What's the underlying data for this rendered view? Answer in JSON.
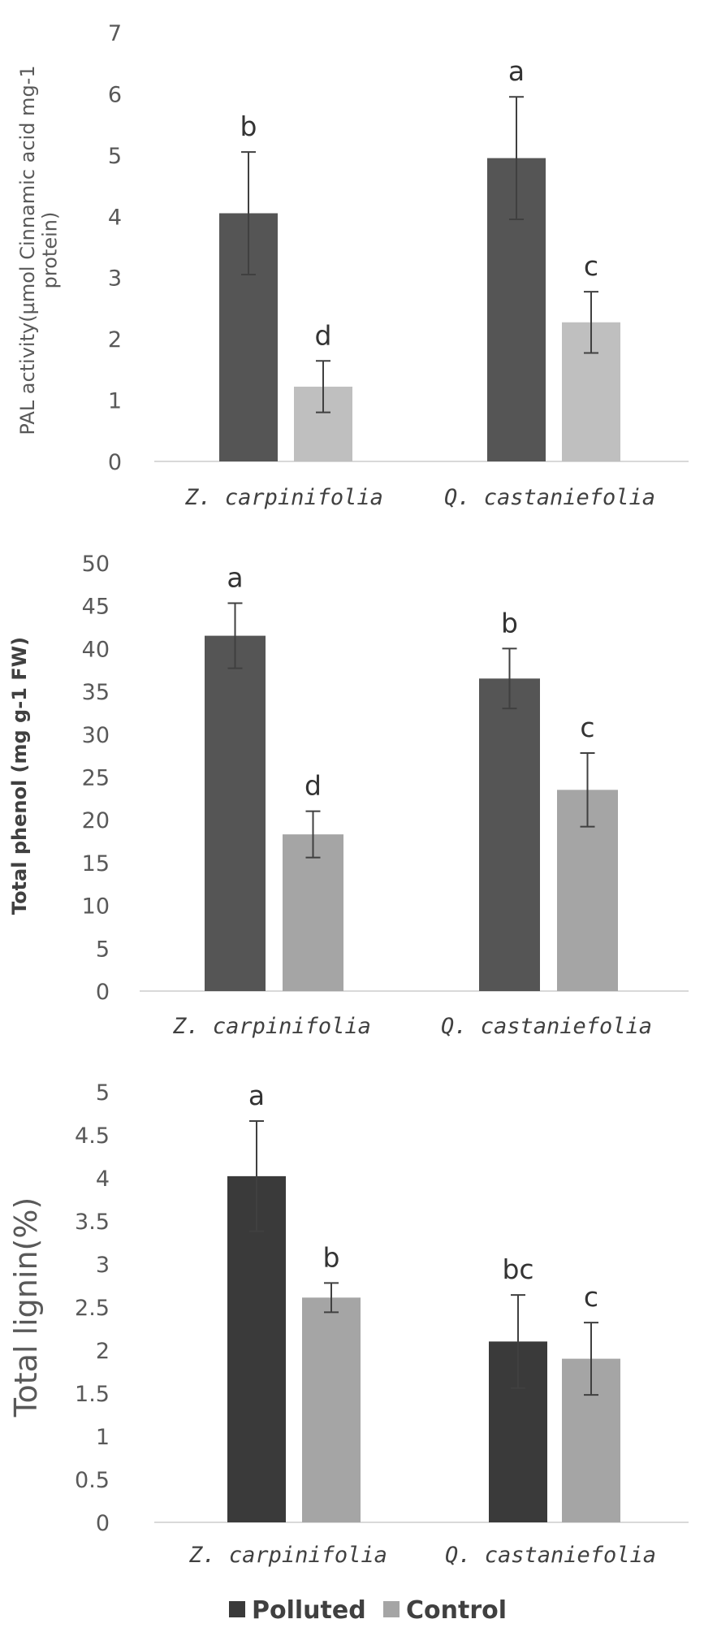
{
  "legend": {
    "polluted": "Polluted",
    "control": "Control"
  },
  "chart_data": [
    {
      "type": "bar",
      "categories": [
        "Z. carpinifolia",
        "Q. castaniefolia"
      ],
      "ylabel_lines": [
        "PAL activity(µmol Cinnamic acid mg-1",
        "protein)"
      ],
      "ylim": [
        0,
        7
      ],
      "yticks": [
        0,
        1,
        2,
        3,
        4,
        5,
        6,
        7
      ],
      "yticklabels": [
        "0",
        "1",
        "2",
        "3",
        "4",
        "5",
        "6",
        "7"
      ],
      "colors": [
        "#555555",
        "#bfbfbf"
      ],
      "series": [
        {
          "name": "Polluted",
          "values": [
            4.05,
            4.95
          ],
          "errors": [
            1.0,
            1.0
          ],
          "labels": [
            "b",
            "a"
          ]
        },
        {
          "name": "Control",
          "values": [
            1.22,
            2.27
          ],
          "errors": [
            0.42,
            0.5
          ],
          "labels": [
            "d",
            "c"
          ]
        }
      ]
    },
    {
      "type": "bar",
      "categories": [
        "Z. carpinifolia",
        "Q. castaniefolia"
      ],
      "ylabel_lines": [
        "Total phenol (mg g-1 FW)"
      ],
      "ylim": [
        0,
        50
      ],
      "yticks": [
        0,
        5,
        10,
        15,
        20,
        25,
        30,
        35,
        40,
        45,
        50
      ],
      "yticklabels": [
        "0",
        "5",
        "10",
        "15",
        "20",
        "25",
        "30",
        "35",
        "40",
        "45",
        "50"
      ],
      "colors": [
        "#555555",
        "#a5a5a5"
      ],
      "series": [
        {
          "name": "Polluted",
          "values": [
            41.5,
            36.5
          ],
          "errors": [
            3.8,
            3.5
          ],
          "labels": [
            "a",
            "b"
          ]
        },
        {
          "name": "Control",
          "values": [
            18.3,
            23.5
          ],
          "errors": [
            2.7,
            4.3
          ],
          "labels": [
            "d",
            "c"
          ]
        }
      ]
    },
    {
      "type": "bar",
      "categories": [
        "Z. carpinifolia",
        "Q. castaniefolia"
      ],
      "ylabel_lines": [
        "Total lignin(%)"
      ],
      "ylim": [
        0,
        5
      ],
      "yticks": [
        0,
        0.5,
        1,
        1.5,
        2,
        2.5,
        3,
        3.5,
        4,
        4.5,
        5
      ],
      "yticklabels": [
        "0",
        "0.5",
        "1",
        "1.5",
        "2",
        "2.5",
        "3",
        "3.5",
        "4",
        "4.5",
        "5"
      ],
      "colors": [
        "#3a3a3a",
        "#a5a5a5"
      ],
      "series": [
        {
          "name": "Polluted",
          "values": [
            4.02,
            2.1
          ],
          "errors": [
            0.64,
            0.54
          ],
          "labels": [
            "a",
            "bc"
          ]
        },
        {
          "name": "Control",
          "values": [
            2.61,
            1.9
          ],
          "errors": [
            0.17,
            0.42
          ],
          "labels": [
            "b",
            "c"
          ]
        }
      ]
    }
  ]
}
